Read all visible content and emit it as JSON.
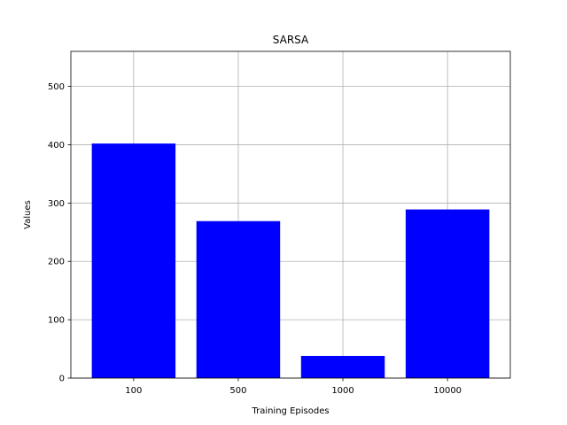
{
  "chart_data": {
    "type": "bar",
    "title": "SARSA",
    "xlabel": "Training Episodes",
    "ylabel": "Values",
    "categories": [
      "100",
      "500",
      "1000",
      "10000"
    ],
    "values": [
      402,
      269,
      38,
      289
    ],
    "ylim": [
      0,
      560
    ],
    "yticks": [
      0,
      100,
      200,
      300,
      400,
      500
    ],
    "ytick_labels": [
      "0",
      "100",
      "200",
      "300",
      "400",
      "500"
    ],
    "grid": true,
    "bar_color": "#0000ff"
  }
}
